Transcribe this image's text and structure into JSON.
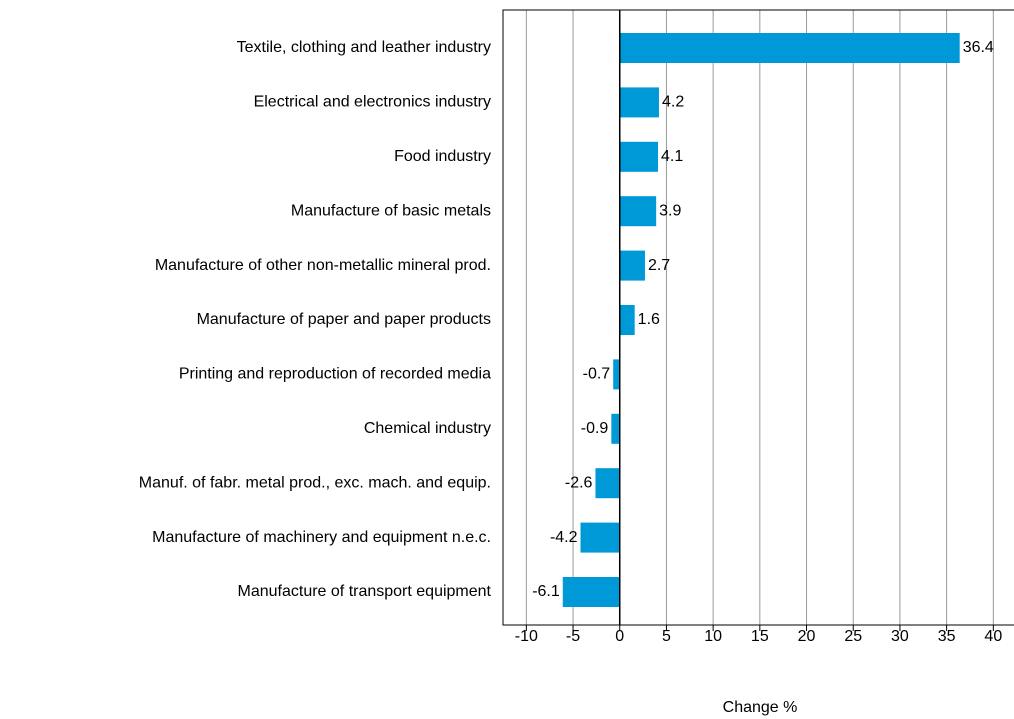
{
  "chart_data": {
    "type": "bar",
    "orientation": "horizontal",
    "categories": [
      "Textile, clothing and leather industry",
      "Electrical and electronics industry",
      "Food industry",
      "Manufacture of basic metals",
      "Manufacture of other non-metallic mineral prod.",
      "Manufacture of paper and paper products",
      "Printing and reproduction of recorded media",
      "Chemical industry",
      "Manuf. of fabr. metal prod., exc. mach. and equip.",
      "Manufacture of machinery and equipment n.e.c.",
      "Manufacture of transport equipment"
    ],
    "values": [
      36.4,
      4.2,
      4.1,
      3.9,
      2.7,
      1.6,
      -0.7,
      -0.9,
      -2.6,
      -4.2,
      -6.1
    ],
    "color": "#0099d8",
    "x_label": "Change %",
    "xlim": [
      -12.5,
      42
    ],
    "xticks": [
      -10,
      -5,
      0,
      5,
      10,
      15,
      20,
      25,
      30,
      35,
      40
    ],
    "grid": true
  }
}
